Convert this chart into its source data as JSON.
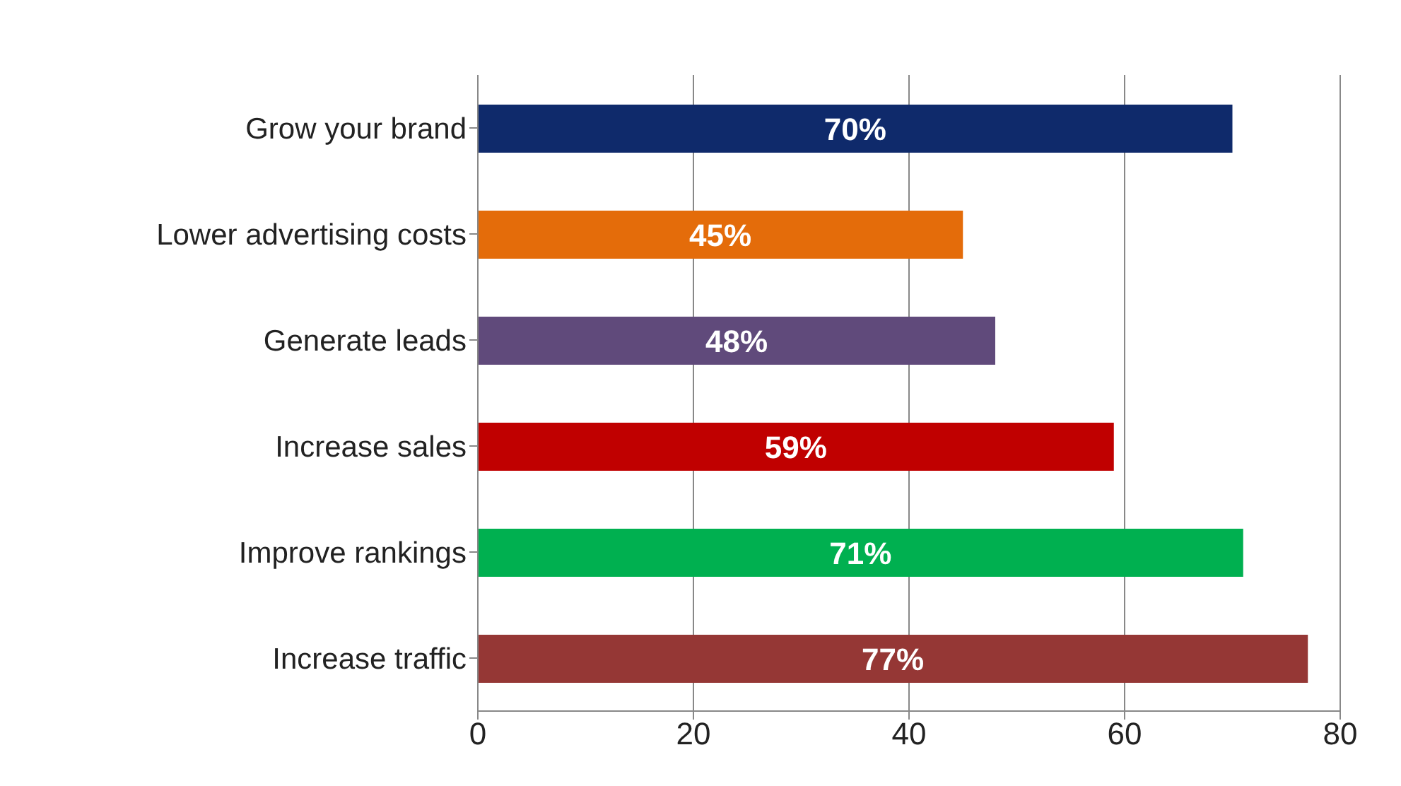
{
  "chart_data": {
    "type": "bar",
    "orientation": "horizontal",
    "categories": [
      "Grow your brand",
      "Lower advertising costs",
      "Generate leads",
      "Increase sales",
      "Improve rankings",
      "Increase traffic"
    ],
    "values": [
      70,
      45,
      48,
      59,
      71,
      77
    ],
    "colors": [
      "#0f2a6b",
      "#e46c0a",
      "#604a7b",
      "#c00000",
      "#00b050",
      "#953735"
    ],
    "value_labels": [
      "70%",
      "45%",
      "48%",
      "59%",
      "71%",
      "77%"
    ],
    "xlim": [
      0,
      80
    ],
    "xticks": [
      0,
      20,
      40,
      60,
      80
    ],
    "grid": "x"
  }
}
